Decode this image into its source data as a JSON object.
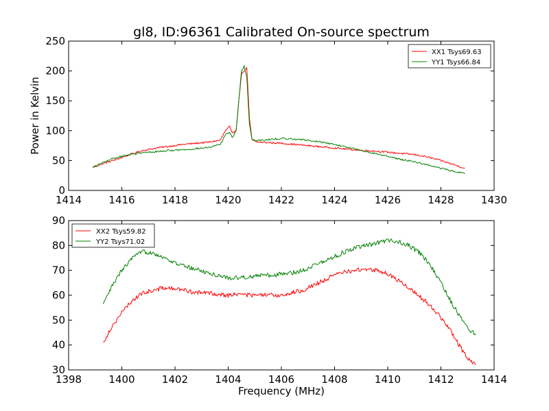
{
  "chart_data": [
    {
      "type": "line",
      "title": "gl8, ID:96361 Calibrated On-source spectrum",
      "xlabel": "",
      "ylabel": "Power in Kelvin",
      "xlim": [
        1414,
        1430
      ],
      "ylim": [
        0,
        250
      ],
      "xticks": [
        1414,
        1416,
        1418,
        1420,
        1422,
        1424,
        1426,
        1428,
        1430
      ],
      "yticks": [
        0,
        50,
        100,
        150,
        200,
        250
      ],
      "grid": false,
      "legend_position": "top-right",
      "series": [
        {
          "name": "XX1 Tsys69.63",
          "color": "#ff0000",
          "x": [
            1414.9,
            1415.3,
            1415.8,
            1416.3,
            1416.8,
            1417.3,
            1417.8,
            1418.3,
            1418.8,
            1419.3,
            1419.7,
            1419.9,
            1420.05,
            1420.15,
            1420.3,
            1420.4,
            1420.5,
            1420.6,
            1420.7,
            1420.8,
            1420.9,
            1421.1,
            1421.5,
            1422.0,
            1422.5,
            1423.0,
            1423.5,
            1424.0,
            1424.5,
            1425.0,
            1425.5,
            1426.0,
            1426.5,
            1427.0,
            1427.5,
            1428.0,
            1428.5,
            1428.9
          ],
          "y": [
            39,
            45,
            52,
            60,
            67,
            71,
            74,
            77,
            79,
            81,
            84,
            100,
            107,
            95,
            102,
            150,
            195,
            200,
            205,
            120,
            84,
            81,
            80,
            79,
            77,
            75,
            73,
            71,
            69,
            67,
            66,
            64,
            62,
            60,
            56,
            50,
            43,
            37
          ]
        },
        {
          "name": "YY1 Tsys66.84",
          "color": "#008000",
          "x": [
            1414.9,
            1415.3,
            1415.8,
            1416.3,
            1416.8,
            1417.3,
            1417.8,
            1418.3,
            1418.8,
            1419.3,
            1419.7,
            1419.9,
            1420.05,
            1420.15,
            1420.3,
            1420.4,
            1420.5,
            1420.6,
            1420.7,
            1420.8,
            1420.9,
            1421.1,
            1421.5,
            1422.0,
            1422.5,
            1423.0,
            1423.5,
            1424.0,
            1424.5,
            1425.0,
            1425.5,
            1426.0,
            1426.5,
            1427.0,
            1427.5,
            1428.0,
            1428.5,
            1428.9
          ],
          "y": [
            38,
            47,
            55,
            60,
            63,
            65,
            67,
            68,
            70,
            72,
            77,
            93,
            98,
            88,
            100,
            150,
            200,
            209,
            190,
            110,
            85,
            84,
            85,
            87,
            86,
            84,
            81,
            77,
            72,
            67,
            62,
            57,
            52,
            48,
            43,
            37,
            32,
            28
          ]
        }
      ]
    },
    {
      "type": "line",
      "title": "",
      "xlabel": "Frequency (MHz)",
      "ylabel": "",
      "xlim": [
        1398,
        1414
      ],
      "ylim": [
        30,
        90
      ],
      "xticks": [
        1398,
        1400,
        1402,
        1404,
        1406,
        1408,
        1410,
        1412,
        1414
      ],
      "yticks": [
        30,
        40,
        50,
        60,
        70,
        80,
        90
      ],
      "grid": false,
      "legend_position": "top-left",
      "series": [
        {
          "name": "XX2 Tsys59.82",
          "color": "#ff0000",
          "x": [
            1399.3,
            1399.6,
            1400.0,
            1400.4,
            1400.8,
            1401.2,
            1401.6,
            1402.0,
            1402.4,
            1402.8,
            1403.2,
            1403.6,
            1404.0,
            1404.4,
            1404.8,
            1405.2,
            1405.6,
            1406.0,
            1406.4,
            1406.8,
            1407.2,
            1407.6,
            1408.0,
            1408.4,
            1408.8,
            1409.2,
            1409.6,
            1410.0,
            1410.4,
            1410.8,
            1411.2,
            1411.6,
            1412.0,
            1412.4,
            1412.8,
            1413.0,
            1413.3
          ],
          "y": [
            41,
            47,
            53,
            58,
            61,
            62,
            63,
            62.5,
            62,
            61,
            61,
            60.5,
            60,
            60.5,
            60,
            60,
            60,
            60,
            61,
            62,
            64,
            66,
            68,
            69.5,
            70,
            70.5,
            70,
            68.5,
            66,
            63,
            59.5,
            56,
            51,
            45,
            38,
            35,
            32
          ]
        },
        {
          "name": "YY2 Tsys71.02",
          "color": "#008000",
          "x": [
            1399.3,
            1399.6,
            1400.0,
            1400.4,
            1400.8,
            1401.2,
            1401.6,
            1402.0,
            1402.4,
            1402.8,
            1403.2,
            1403.6,
            1404.0,
            1404.4,
            1404.8,
            1405.2,
            1405.6,
            1406.0,
            1406.4,
            1406.8,
            1407.2,
            1407.6,
            1408.0,
            1408.4,
            1408.8,
            1409.2,
            1409.6,
            1410.0,
            1410.4,
            1410.8,
            1411.2,
            1411.6,
            1412.0,
            1412.4,
            1412.8,
            1413.0,
            1413.3
          ],
          "y": [
            56,
            63,
            70,
            75,
            77.5,
            77,
            75,
            73,
            71.5,
            70.5,
            69,
            68,
            67,
            67,
            67.5,
            68,
            68,
            68.5,
            69,
            70,
            72,
            73.5,
            75.5,
            77.5,
            79,
            80,
            81,
            82,
            81.5,
            80,
            77,
            72,
            65,
            57,
            50,
            47,
            44
          ]
        }
      ]
    }
  ]
}
